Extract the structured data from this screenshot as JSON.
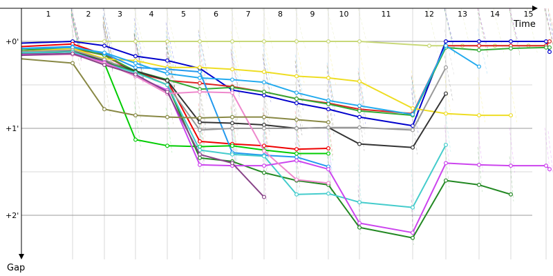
{
  "chart_data": {
    "type": "line",
    "xlabel": "Time",
    "ylabel": "Gap",
    "lap_labels": [
      "1",
      "2",
      "3",
      "4",
      "5",
      "6",
      "7",
      "8",
      "9",
      "10",
      "11",
      "12",
      "13",
      "14",
      "15"
    ],
    "y_tick_labels": [
      "+0'",
      "+1'",
      "+2'"
    ],
    "y_ticks_minutes": [
      0,
      1,
      2
    ],
    "x_range_laps": [
      0,
      16
    ],
    "y_range_minutes": [
      0,
      2.5
    ],
    "grid": true,
    "series": [
      {
        "color": "#c8d878",
        "values": [
          [
            0,
            0.02
          ],
          [
            1,
            0
          ],
          [
            2,
            0
          ],
          [
            3,
            0
          ],
          [
            4,
            0
          ],
          [
            5,
            0
          ],
          [
            6,
            0
          ],
          [
            7,
            0
          ],
          [
            8,
            0
          ],
          [
            9,
            0
          ],
          [
            10,
            0
          ],
          [
            11.5,
            0.05
          ],
          [
            12.5,
            0.05
          ],
          [
            13.5,
            0.05
          ],
          [
            14.5,
            0.05
          ],
          [
            15,
            0.05
          ]
        ]
      },
      {
        "color": "#0000cc",
        "values": [
          [
            0,
            0.02
          ],
          [
            1,
            0
          ],
          [
            2,
            0.05
          ],
          [
            3,
            0.17
          ],
          [
            4,
            0.22
          ],
          [
            5,
            0.31
          ],
          [
            6,
            0.56
          ],
          [
            7,
            0.62
          ],
          [
            8,
            0.71
          ],
          [
            9,
            0.78
          ],
          [
            10,
            0.87
          ],
          [
            11,
            0.97
          ],
          [
            12,
            0
          ],
          [
            13,
            0
          ],
          [
            14,
            0
          ],
          [
            15,
            0
          ],
          [
            16,
            0.12
          ]
        ]
      },
      {
        "color": "#ee0000",
        "values": [
          [
            0,
            0.06
          ],
          [
            1,
            0.03
          ],
          [
            2,
            0.15
          ],
          [
            3,
            0.35
          ],
          [
            4,
            0.45
          ],
          [
            5,
            1.15
          ],
          [
            6,
            1.18
          ],
          [
            7,
            1.2
          ],
          [
            8,
            1.24
          ],
          [
            9,
            1.23
          ]
        ]
      },
      {
        "color": "#dd2222",
        "values": [
          [
            0,
            0.1
          ],
          [
            1,
            0.08
          ],
          [
            2,
            0.16
          ],
          [
            3,
            0.36
          ],
          [
            4,
            0.45
          ],
          [
            5,
            0.48
          ],
          [
            6,
            0.52
          ],
          [
            7,
            0.58
          ],
          [
            8,
            0.66
          ],
          [
            9,
            0.71
          ],
          [
            10,
            0.78
          ],
          [
            11,
            0.83
          ],
          [
            12,
            0.05
          ],
          [
            13,
            0.05
          ],
          [
            14,
            0.05
          ],
          [
            15,
            0.05
          ],
          [
            16,
            0
          ]
        ]
      },
      {
        "color": "#33aa33",
        "values": [
          [
            0,
            0.1
          ],
          [
            1,
            0.07
          ],
          [
            2,
            0.16
          ],
          [
            3,
            0.34
          ],
          [
            4,
            0.44
          ],
          [
            5,
            0.55
          ],
          [
            6,
            0.53
          ],
          [
            7,
            0.58
          ],
          [
            8,
            0.66
          ],
          [
            9,
            0.72
          ],
          [
            10,
            0.8
          ],
          [
            11,
            0.85
          ],
          [
            12,
            0.07
          ],
          [
            13,
            0.1
          ],
          [
            14,
            0.08
          ],
          [
            15,
            0.07
          ],
          [
            16,
            0.07
          ]
        ]
      },
      {
        "color": "#eedd22",
        "values": [
          [
            0,
            0.12
          ],
          [
            1,
            0.08
          ],
          [
            2,
            0.2
          ],
          [
            3,
            0.22
          ],
          [
            4,
            0.3
          ],
          [
            5,
            0.3
          ],
          [
            6,
            0.32
          ],
          [
            7,
            0.35
          ],
          [
            8,
            0.4
          ],
          [
            9,
            0.42
          ],
          [
            10,
            0.46
          ],
          [
            11,
            0.77
          ],
          [
            12,
            0.83
          ],
          [
            13,
            0.85
          ],
          [
            14,
            0.85
          ]
        ]
      },
      {
        "color": "#2299ee",
        "values": [
          [
            0,
            0.08
          ],
          [
            1,
            0.06
          ],
          [
            2,
            0.14
          ],
          [
            3,
            0.3
          ],
          [
            4,
            0.32
          ],
          [
            5,
            0.35
          ],
          [
            6,
            1.28
          ],
          [
            7,
            1.31
          ],
          [
            8,
            1.33
          ],
          [
            9,
            1.44
          ]
        ]
      },
      {
        "color": "#22aaee",
        "values": [
          [
            0,
            0.08
          ],
          [
            1,
            0.07
          ],
          [
            2,
            0.13
          ],
          [
            3,
            0.25
          ],
          [
            4,
            0.37
          ],
          [
            5,
            0.42
          ],
          [
            6,
            0.44
          ],
          [
            7,
            0.47
          ],
          [
            8,
            0.59
          ],
          [
            9,
            0.68
          ],
          [
            10,
            0.74
          ],
          [
            11,
            0.84
          ],
          [
            12,
            0.05
          ],
          [
            13,
            0.29
          ]
        ]
      },
      {
        "color": "#333333",
        "values": [
          [
            0,
            0.12
          ],
          [
            1,
            0.11
          ],
          [
            2,
            0.22
          ],
          [
            3,
            0.34
          ],
          [
            4,
            0.45
          ],
          [
            5,
            0.93
          ],
          [
            6,
            0.94
          ],
          [
            7,
            0.96
          ],
          [
            8,
            1.0
          ],
          [
            9,
            0.99
          ],
          [
            10,
            1.18
          ],
          [
            11,
            1.22
          ],
          [
            12,
            0.6
          ]
        ]
      },
      {
        "color": "#999999",
        "values": [
          [
            0,
            0.12
          ],
          [
            1,
            0.1
          ],
          [
            2,
            0.21
          ],
          [
            3,
            0.36
          ],
          [
            4,
            0.5
          ],
          [
            5,
            1.02
          ],
          [
            6,
            1.0
          ],
          [
            7,
            1.0
          ],
          [
            8,
            1.0
          ],
          [
            9,
            0.99
          ],
          [
            10,
            0.99
          ],
          [
            11,
            1.02
          ],
          [
            12,
            0.3
          ]
        ]
      },
      {
        "color": "#00cc00",
        "values": [
          [
            0,
            0.14
          ],
          [
            1,
            0.12
          ],
          [
            2,
            0.25
          ],
          [
            3,
            1.13
          ],
          [
            4,
            1.2
          ],
          [
            5,
            1.21
          ],
          [
            6,
            1.2
          ],
          [
            7,
            1.25
          ],
          [
            8,
            1.29
          ],
          [
            9,
            1.29
          ]
        ]
      },
      {
        "color": "#228822",
        "values": [
          [
            0,
            0.14
          ],
          [
            1,
            0.12
          ],
          [
            2,
            0.24
          ],
          [
            3,
            0.35
          ],
          [
            4,
            0.5
          ],
          [
            5,
            1.34
          ],
          [
            6,
            1.38
          ],
          [
            7,
            1.51
          ],
          [
            8,
            1.6
          ],
          [
            9,
            1.65
          ],
          [
            10,
            2.14
          ],
          [
            11,
            2.26
          ],
          [
            12,
            1.6
          ],
          [
            13,
            1.65
          ],
          [
            14,
            1.76
          ]
        ]
      },
      {
        "color": "#44cccc",
        "values": [
          [
            0,
            0.13
          ],
          [
            1,
            0.12
          ],
          [
            2,
            0.25
          ],
          [
            3,
            0.36
          ],
          [
            4,
            0.5
          ],
          [
            5,
            1.25
          ],
          [
            6,
            1.3
          ],
          [
            7,
            1.32
          ],
          [
            8,
            1.76
          ],
          [
            9,
            1.75
          ],
          [
            10,
            1.85
          ],
          [
            11,
            1.91
          ],
          [
            12,
            1.19
          ]
        ]
      },
      {
        "color": "#cc44ee",
        "values": [
          [
            0,
            0.15
          ],
          [
            1,
            0.14
          ],
          [
            2,
            0.24
          ],
          [
            3,
            0.4
          ],
          [
            4,
            0.56
          ],
          [
            5,
            1.42
          ],
          [
            6,
            1.43
          ],
          [
            7,
            1.43
          ],
          [
            8,
            1.37
          ],
          [
            9,
            1.47
          ],
          [
            10,
            2.09
          ],
          [
            11,
            2.2
          ],
          [
            12,
            1.4
          ],
          [
            13,
            1.42
          ],
          [
            14,
            1.43
          ],
          [
            15,
            1.43
          ],
          [
            16,
            1.47
          ]
        ]
      },
      {
        "color": "#ee88cc",
        "values": [
          [
            0,
            0.16
          ],
          [
            1,
            0.15
          ],
          [
            2,
            0.25
          ],
          [
            3,
            0.4
          ],
          [
            4,
            0.6
          ],
          [
            5,
            0.58
          ],
          [
            6,
            0.59
          ],
          [
            7,
            1.26
          ],
          [
            8,
            1.59
          ],
          [
            9,
            1.63
          ]
        ]
      },
      {
        "color": "#884488",
        "values": [
          [
            0,
            0.16
          ],
          [
            1,
            0.14
          ],
          [
            2,
            0.27
          ],
          [
            3,
            0.38
          ],
          [
            4,
            0.58
          ],
          [
            5,
            1.3
          ],
          [
            6,
            1.4
          ],
          [
            7,
            1.79
          ]
        ]
      },
      {
        "color": "#888844",
        "values": [
          [
            0,
            0.2
          ],
          [
            1,
            0.25
          ],
          [
            2,
            0.78
          ],
          [
            3,
            0.85
          ],
          [
            4,
            0.87
          ],
          [
            5,
            0.88
          ],
          [
            6,
            0.87
          ],
          [
            7,
            0.87
          ],
          [
            8,
            0.9
          ],
          [
            9,
            0.93
          ]
        ]
      }
    ]
  }
}
